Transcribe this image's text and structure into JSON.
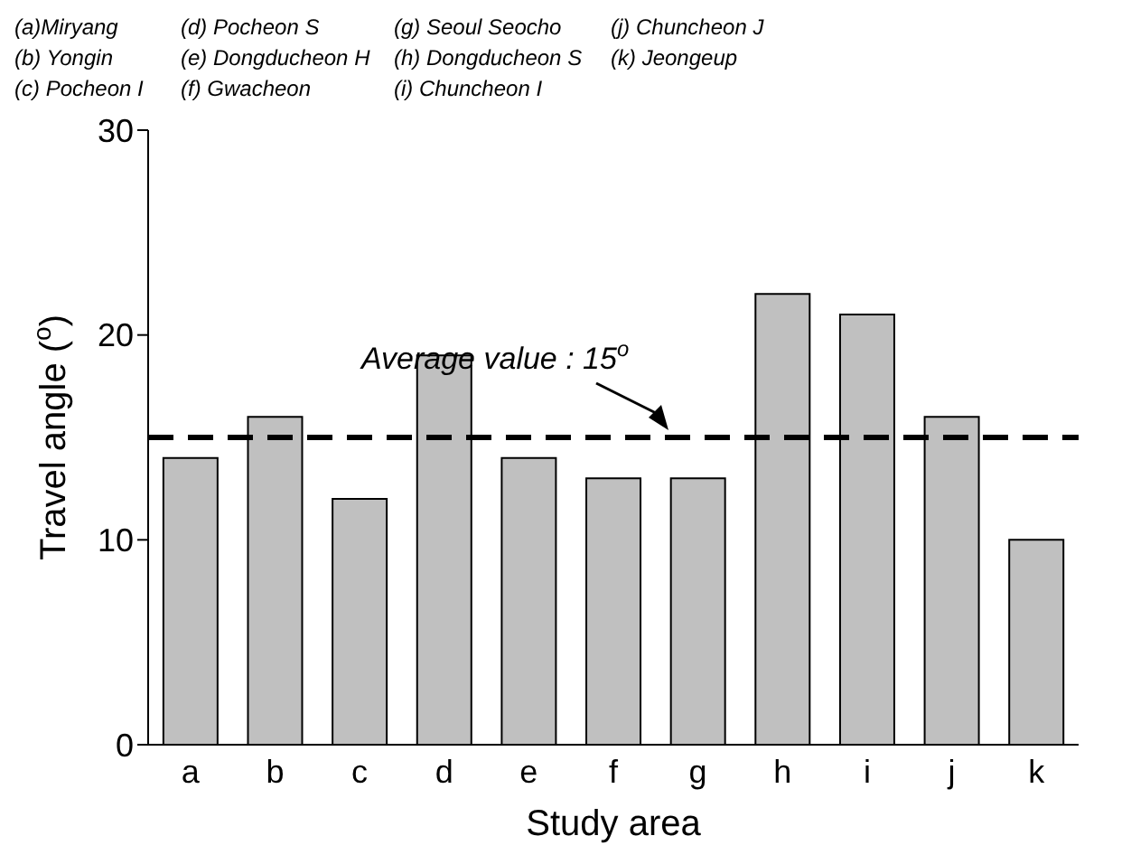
{
  "chart_data": {
    "type": "bar",
    "xlabel": "Study area",
    "ylabel": "Travel angle ($^{o}$)",
    "categories": [
      "a",
      "b",
      "c",
      "d",
      "e",
      "f",
      "g",
      "h",
      "i",
      "j",
      "k"
    ],
    "values": [
      14,
      16,
      12,
      19,
      14,
      13,
      13,
      22,
      21,
      16,
      10
    ],
    "color": "#c0c0c0",
    "ylim": [
      0,
      30
    ],
    "yticks": [
      0,
      10,
      20,
      30
    ],
    "ref_lines": [
      {
        "axis": "y",
        "value": 15,
        "label": "Average value : 15$^{o}$",
        "line_style": "dashed",
        "color": "#000000"
      }
    ],
    "annotations": [
      "(a)Miryang",
      "(b) Yongin",
      "(c) Pocheon I",
      "(d) Pocheon S",
      "(e) Dongducheon H",
      "(f) Gwacheon",
      "(g) Seoul Seocho",
      "(h) Dongducheon S",
      "(i) Chuncheon I",
      "(j) Chuncheon J",
      "(k) Jeongeup"
    ]
  }
}
